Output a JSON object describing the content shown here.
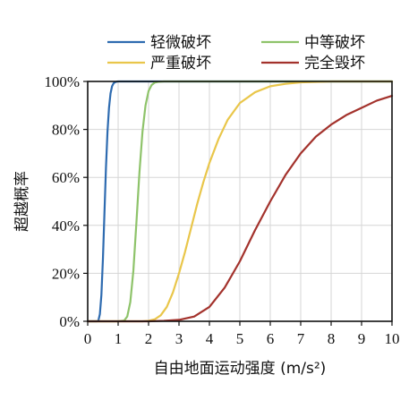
{
  "chart_data": {
    "type": "line",
    "title": "",
    "xlabel": "自由地面运动强度 (m/s²)",
    "ylabel": "超越概率",
    "xlim": [
      0,
      10
    ],
    "ylim": [
      0,
      100
    ],
    "x_ticks": [
      0,
      1,
      2,
      3,
      4,
      5,
      6,
      7,
      8,
      9,
      10
    ],
    "y_ticks": [
      0,
      20,
      40,
      60,
      80,
      100
    ],
    "x_tick_labels": [
      "0",
      "1",
      "2",
      "3",
      "4",
      "5",
      "6",
      "7",
      "8",
      "9",
      "10"
    ],
    "y_tick_labels": [
      "0%",
      "20%",
      "40%",
      "60%",
      "80%",
      "100%"
    ],
    "grid": true,
    "legend_position": "top",
    "series": [
      {
        "name": "轻微破坏",
        "color": "#2e6bb0",
        "x": [
          0,
          0.3,
          0.35,
          0.4,
          0.45,
          0.5,
          0.55,
          0.6,
          0.65,
          0.7,
          0.75,
          0.8,
          0.85,
          0.9,
          0.95,
          1.0,
          1.1,
          1.2,
          1.5,
          2,
          4,
          6,
          8,
          10
        ],
        "y": [
          0,
          0,
          0.3,
          3,
          11,
          26,
          45,
          64,
          79,
          89,
          95,
          98,
          99.2,
          99.7,
          99.9,
          100,
          100,
          100,
          100,
          100,
          100,
          100,
          100,
          100
        ]
      },
      {
        "name": "中等破坏",
        "color": "#8ec36a",
        "x": [
          0,
          1.0,
          1.2,
          1.3,
          1.4,
          1.5,
          1.6,
          1.7,
          1.8,
          1.9,
          2.0,
          2.1,
          2.2,
          2.3,
          2.5,
          3,
          4,
          6,
          8,
          10
        ],
        "y": [
          0,
          0,
          0.3,
          2,
          8,
          21,
          41,
          62,
          79,
          90,
          96,
          98.5,
          99.5,
          99.8,
          100,
          100,
          100,
          100,
          100,
          100
        ]
      },
      {
        "name": "严重破坏",
        "color": "#e9c64a",
        "x": [
          0,
          1.8,
          2.0,
          2.2,
          2.4,
          2.6,
          2.8,
          3.0,
          3.2,
          3.4,
          3.6,
          3.8,
          4.0,
          4.3,
          4.6,
          5.0,
          5.5,
          6.0,
          6.5,
          7.0,
          8.0,
          9.0,
          10.0
        ],
        "y": [
          0,
          0,
          0.2,
          0.8,
          2.5,
          6,
          12,
          20,
          29,
          39,
          49,
          58,
          66,
          76,
          84,
          91,
          95.5,
          98,
          99,
          99.6,
          100,
          100,
          100
        ]
      },
      {
        "name": "完全毁坏",
        "color": "#a3322c",
        "x": [
          0,
          2.0,
          2.5,
          3.0,
          3.5,
          4.0,
          4.5,
          5.0,
          5.5,
          6.0,
          6.5,
          7.0,
          7.5,
          8.0,
          8.5,
          9.0,
          9.5,
          10.0
        ],
        "y": [
          0,
          0,
          0.2,
          0.6,
          2,
          6,
          14,
          25,
          38,
          50,
          61,
          70,
          77,
          82,
          86,
          89,
          92,
          94
        ]
      }
    ]
  }
}
